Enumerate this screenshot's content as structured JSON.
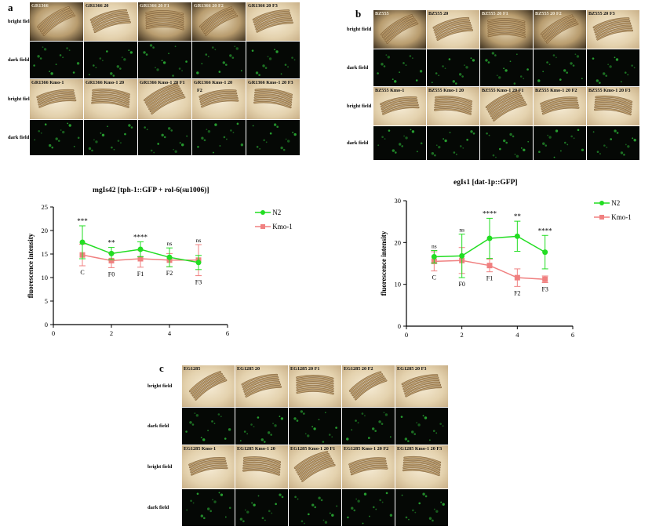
{
  "panel_a": {
    "letter": "a",
    "row_label_bright": "bright field",
    "row_label_dark": "dark field",
    "top_labels": [
      "GR1366",
      "GR1366 20",
      "GR1366 20 F1",
      "GR1366 20 F2",
      "GR1366 20 F3"
    ],
    "bottom_labels": [
      "GR1366 Kmo-1",
      "GR1366 Kmo-1 20",
      "GR1366 Kmo-1 20 F1",
      "GR1366 Kmo-1 20",
      "GR1366 Kmo-1 20 F3"
    ],
    "extra_mark": "F2"
  },
  "panel_b": {
    "letter": "b",
    "row_label_bright": "bright field",
    "row_label_dark": "dark field",
    "top_labels": [
      "BZ555",
      "BZ555 20",
      "BZ555 20 F1",
      "BZ555 20 F2",
      "BZ555 20 F3"
    ],
    "bottom_labels": [
      "BZ555 Kmo-1",
      "BZ555 Kmo-1 20",
      "BZ555 Kmo-1 20 F1",
      "BZ555 Kmo-1 20 F2",
      "BZ555 Kmo-1 20 F3"
    ]
  },
  "panel_c": {
    "letter": "c",
    "row_label_bright": "bright field",
    "row_label_dark": "dark field",
    "top_labels": [
      "EG1285",
      "EG1285 20",
      "EG1285 20 F1",
      "EG1285 20 F2",
      "EG1285 20 F3"
    ],
    "bottom_labels": [
      "EG1285 Kmo-1",
      "EG1285 Kmo-1 20",
      "EG1285 Kmo-1 20 F1",
      "EG1285 Kmo-1 20 F2",
      "EG1285 Kmo-1 20 F3"
    ]
  },
  "colors": {
    "n2": "#22dd22",
    "kmo1": "#f08080",
    "fluor": "#2fbf3a"
  },
  "chart_data": [
    {
      "type": "line",
      "title": "mgIs42 [tph-1::GFP + rol-6(su1006)]",
      "ylabel": "fluorescence intensity",
      "xlabel": "",
      "xlim": [
        0,
        6
      ],
      "ylim": [
        0,
        25
      ],
      "xticks": [
        0,
        2,
        4,
        6
      ],
      "yticks": [
        0,
        5,
        10,
        15,
        20,
        25
      ],
      "x": [
        1,
        2,
        3,
        4,
        5
      ],
      "point_labels": [
        "C",
        "F0",
        "F1",
        "F2",
        "F3"
      ],
      "significance": [
        "***",
        "**",
        "****",
        "ns",
        "ns"
      ],
      "legend_position": "right",
      "series": [
        {
          "name": "N2",
          "values": [
            17.5,
            15.1,
            16.0,
            14.3,
            13.2
          ],
          "errors": [
            3.5,
            1.3,
            1.6,
            2.0,
            1.5
          ]
        },
        {
          "name": "Kmo-1",
          "values": [
            14.8,
            13.6,
            14.0,
            13.7,
            13.7
          ],
          "errors": [
            2.3,
            1.5,
            1.8,
            1.4,
            3.3
          ]
        }
      ]
    },
    {
      "type": "line",
      "title": "egIs1 [dat-1p::GFP]",
      "ylabel": "fluorescence intensity",
      "xlabel": "",
      "xlim": [
        0,
        6
      ],
      "ylim": [
        0,
        30
      ],
      "xticks": [
        0,
        2,
        4,
        6
      ],
      "yticks": [
        0,
        10,
        20,
        30
      ],
      "x": [
        1,
        2,
        3,
        4,
        5
      ],
      "point_labels": [
        "C",
        "F0",
        "F1",
        "F2",
        "F3"
      ],
      "significance": [
        "ns",
        "ns",
        "****",
        "**",
        "****"
      ],
      "legend_position": "right",
      "series": [
        {
          "name": "N2",
          "values": [
            16.6,
            16.8,
            21.0,
            21.5,
            17.7
          ],
          "errors": [
            1.5,
            5.2,
            4.8,
            3.6,
            4.0
          ]
        },
        {
          "name": "Kmo-1",
          "values": [
            15.5,
            15.7,
            14.5,
            11.6,
            11.2
          ],
          "errors": [
            2.3,
            3.1,
            1.5,
            2.1,
            0.8
          ]
        }
      ]
    }
  ]
}
